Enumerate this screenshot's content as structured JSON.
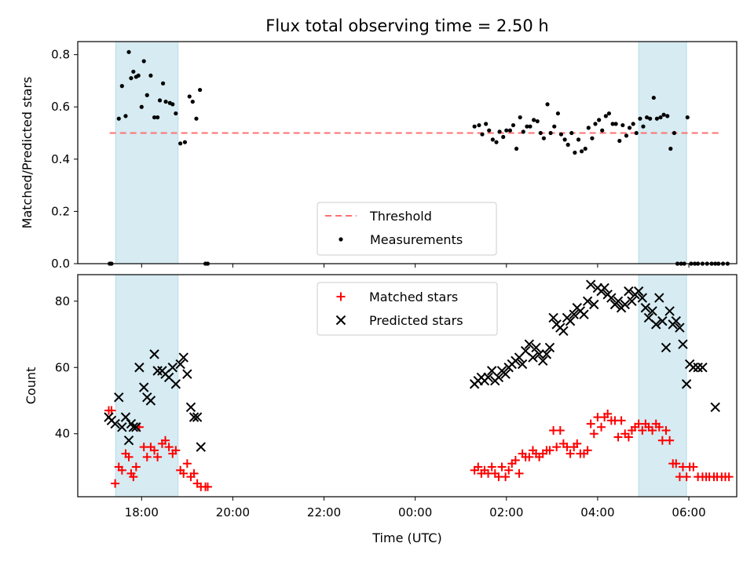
{
  "chart_data": [
    {
      "type": "scatter",
      "title": "Flux total observing time = 2.50 h",
      "ylabel": "Matched/Predicted stars",
      "xlabel": "",
      "xlim": [
        16.6,
        31.05
      ],
      "ylim": [
        0,
        0.85
      ],
      "yticks": [
        0,
        0.2,
        0.4,
        0.6,
        0.8
      ],
      "ytick_labels": [
        "0.0",
        "0.2",
        "0.4",
        "0.6",
        "0.8"
      ],
      "xticks": [
        18,
        20,
        22,
        24,
        26,
        28,
        30
      ],
      "shaded_spans": [
        [
          17.43,
          18.8
        ],
        [
          28.9,
          29.95
        ]
      ],
      "shade_color": "#add8e6",
      "threshold": {
        "name": "Threshold",
        "y": 0.5,
        "x_range": [
          17.3,
          30.7
        ],
        "color": "#ff7070"
      },
      "legend_position": "lower center",
      "series": [
        {
          "name": "Measurements",
          "color": "#000000",
          "x": [
            17.3,
            17.34,
            17.5,
            17.57,
            17.65,
            17.72,
            17.77,
            17.82,
            17.88,
            17.93,
            18.0,
            18.05,
            18.12,
            18.2,
            18.28,
            18.35,
            18.4,
            18.47,
            18.53,
            18.62,
            18.68,
            18.75,
            18.85,
            18.95,
            19.05,
            19.12,
            19.2,
            19.28,
            19.4,
            19.45,
            25.3,
            25.4,
            25.47,
            25.55,
            25.62,
            25.7,
            25.78,
            25.85,
            25.93,
            26.0,
            26.08,
            26.15,
            26.22,
            26.3,
            26.37,
            26.45,
            26.52,
            26.6,
            26.68,
            26.75,
            26.82,
            26.9,
            26.97,
            27.05,
            27.13,
            27.2,
            27.28,
            27.35,
            27.43,
            27.5,
            27.58,
            27.65,
            27.73,
            27.8,
            27.88,
            27.95,
            28.03,
            28.1,
            28.18,
            28.25,
            28.33,
            28.4,
            28.48,
            28.55,
            28.63,
            28.7,
            28.78,
            28.85,
            28.93,
            29.0,
            29.08,
            29.15,
            29.23,
            29.3,
            29.38,
            29.45,
            29.53,
            29.6,
            29.68,
            29.75,
            29.83,
            29.9,
            29.97,
            30.05,
            30.13,
            30.2,
            30.3,
            30.4,
            30.5,
            30.58,
            30.65,
            30.75,
            30.85
          ],
          "y": [
            0,
            0,
            0.555,
            0.68,
            0.565,
            0.81,
            0.71,
            0.735,
            0.715,
            0.72,
            0.6,
            0.775,
            0.645,
            0.72,
            0.56,
            0.56,
            0.625,
            0.69,
            0.62,
            0.615,
            0.61,
            0.575,
            0.46,
            0.465,
            0.64,
            0.62,
            0.555,
            0.665,
            0,
            0,
            0.525,
            0.53,
            0.495,
            0.535,
            0.51,
            0.475,
            0.465,
            0.505,
            0.485,
            0.51,
            0.51,
            0.53,
            0.44,
            0.56,
            0.505,
            0.525,
            0.525,
            0.55,
            0.545,
            0.5,
            0.48,
            0.61,
            0.5,
            0.525,
            0.575,
            0.495,
            0.475,
            0.455,
            0.5,
            0.425,
            0.475,
            0.43,
            0.44,
            0.52,
            0.48,
            0.535,
            0.55,
            0.51,
            0.565,
            0.575,
            0.535,
            0.535,
            0.47,
            0.53,
            0.49,
            0.52,
            0.535,
            0.5,
            0.555,
            0.525,
            0.56,
            0.555,
            0.635,
            0.555,
            0.56,
            0.57,
            0.565,
            0.44,
            0.5,
            0,
            0,
            0,
            0.56,
            0,
            0,
            0,
            0,
            0,
            0,
            0,
            0,
            0,
            0
          ]
        }
      ]
    },
    {
      "type": "scatter",
      "title": "",
      "ylabel": "Count",
      "xlabel": "Time (UTC)",
      "xlim": [
        16.6,
        31.05
      ],
      "ylim": [
        21,
        88
      ],
      "yticks": [
        40,
        60,
        80
      ],
      "xticks": [
        18,
        20,
        22,
        24,
        26,
        28,
        30
      ],
      "xtick_labels": [
        "18:00",
        "20:00",
        "22:00",
        "00:00",
        "02:00",
        "04:00",
        "06:00"
      ],
      "shaded_spans": [
        [
          17.43,
          18.8
        ],
        [
          28.9,
          29.95
        ]
      ],
      "legend_position": "upper center",
      "series": [
        {
          "name": "Matched stars",
          "marker": "+",
          "color": "#ff0000",
          "x": [
            17.28,
            17.34,
            17.42,
            17.5,
            17.57,
            17.65,
            17.72,
            17.77,
            17.82,
            17.88,
            17.95,
            18.05,
            18.12,
            18.2,
            18.28,
            18.35,
            18.45,
            18.52,
            18.6,
            18.68,
            18.75,
            18.85,
            18.92,
            19.0,
            19.08,
            19.15,
            19.22,
            19.3,
            19.4,
            19.45,
            25.3,
            25.38,
            25.45,
            25.52,
            25.6,
            25.68,
            25.75,
            25.83,
            25.9,
            25.98,
            26.05,
            26.12,
            26.2,
            26.28,
            26.35,
            26.42,
            26.5,
            26.58,
            26.65,
            26.72,
            26.8,
            26.88,
            26.95,
            27.03,
            27.1,
            27.18,
            27.25,
            27.33,
            27.4,
            27.48,
            27.55,
            27.62,
            27.7,
            27.78,
            27.85,
            27.92,
            28.0,
            28.08,
            28.15,
            28.22,
            28.3,
            28.38,
            28.45,
            28.52,
            28.6,
            28.68,
            28.75,
            28.82,
            28.9,
            28.98,
            29.05,
            29.12,
            29.2,
            29.28,
            29.35,
            29.42,
            29.5,
            29.58,
            29.65,
            29.72,
            29.8,
            29.87,
            29.95,
            30.02,
            30.1,
            30.2,
            30.3,
            30.38,
            30.45,
            30.55,
            30.62,
            30.72,
            30.8,
            30.88
          ],
          "y": [
            47,
            47,
            25,
            30,
            29,
            34,
            33,
            28,
            27,
            30,
            42,
            36,
            33,
            36,
            35,
            33,
            37,
            38,
            36,
            34,
            35,
            29,
            28,
            31,
            27,
            28,
            25,
            24,
            24,
            24,
            29,
            30,
            28,
            29,
            28,
            30,
            28,
            27,
            30,
            27,
            29,
            31,
            32,
            28,
            34,
            33,
            33,
            35,
            34,
            33,
            34,
            35,
            35,
            41,
            36,
            41,
            37,
            36,
            34,
            36,
            37,
            34,
            34,
            35,
            43,
            40,
            45,
            42,
            45,
            46,
            44,
            44,
            39,
            44,
            40,
            39,
            41,
            42,
            43,
            41,
            43,
            42,
            41,
            43,
            42,
            38,
            41,
            38,
            31,
            31,
            27,
            30,
            27,
            30,
            30,
            27,
            27,
            27,
            27,
            27,
            27,
            27,
            27,
            27
          ],
          "y_visible_count": 104
        },
        {
          "name": "Predicted stars",
          "marker": "x",
          "color": "#000000",
          "x": [
            17.28,
            17.34,
            17.42,
            17.5,
            17.57,
            17.65,
            17.72,
            17.77,
            17.82,
            17.88,
            17.95,
            18.05,
            18.12,
            18.2,
            18.28,
            18.35,
            18.45,
            18.52,
            18.6,
            18.68,
            18.75,
            18.85,
            18.92,
            19.0,
            19.08,
            19.15,
            19.22,
            19.3,
            25.3,
            25.38,
            25.45,
            25.52,
            25.6,
            25.68,
            25.75,
            25.83,
            25.9,
            25.98,
            26.05,
            26.12,
            26.2,
            26.28,
            26.35,
            26.42,
            26.5,
            26.58,
            26.65,
            26.72,
            26.8,
            26.88,
            26.95,
            27.03,
            27.1,
            27.18,
            27.25,
            27.33,
            27.4,
            27.48,
            27.55,
            27.62,
            27.7,
            27.78,
            27.85,
            27.92,
            28.0,
            28.08,
            28.15,
            28.22,
            28.3,
            28.38,
            28.45,
            28.52,
            28.6,
            28.68,
            28.75,
            28.82,
            28.9,
            28.98,
            29.05,
            29.12,
            29.2,
            29.28,
            29.35,
            29.42,
            29.5,
            29.58,
            29.65,
            29.72,
            29.8,
            29.87,
            29.95,
            30.02,
            30.1,
            30.2,
            30.3,
            30.58
          ],
          "y": [
            45,
            44,
            43,
            51,
            42,
            45,
            38,
            43,
            42,
            42,
            60,
            54,
            51,
            50,
            64,
            59,
            59,
            58,
            57,
            60,
            55,
            61,
            63,
            58,
            48,
            45,
            45,
            36,
            55,
            56,
            57,
            56,
            57,
            59,
            56,
            57,
            59,
            58,
            60,
            61,
            62,
            63,
            61,
            65,
            67,
            63,
            66,
            64,
            62,
            64,
            66,
            75,
            73,
            72,
            71,
            75,
            74,
            76,
            78,
            77,
            76,
            80,
            85,
            79,
            84,
            83,
            84,
            82,
            81,
            79,
            80,
            78,
            79,
            83,
            80,
            82,
            83,
            81,
            78,
            75,
            77,
            73,
            81,
            74,
            66,
            77,
            73,
            74,
            72,
            67,
            55,
            61,
            60,
            60,
            60,
            48
          ]
        }
      ]
    }
  ]
}
